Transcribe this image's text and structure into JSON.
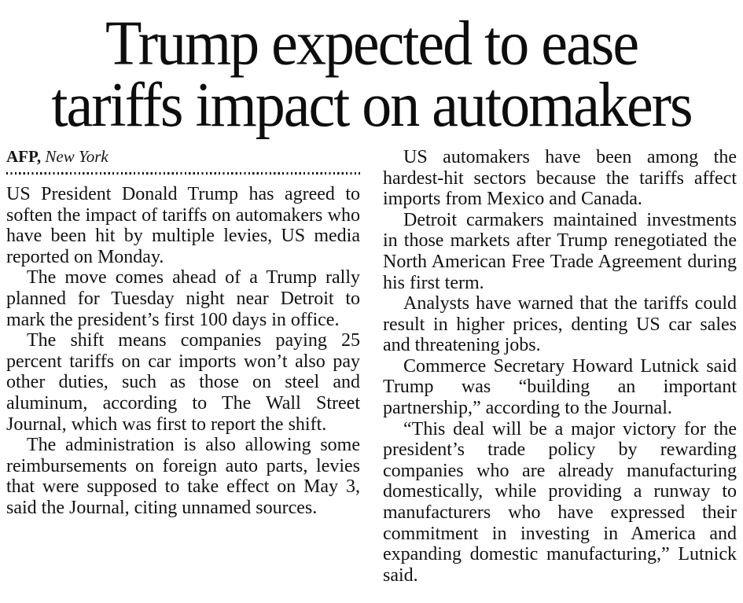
{
  "article": {
    "headline_lines": [
      "Trump expected to ease",
      "tariffs impact on automakers"
    ],
    "byline": {
      "agency": "AFP,",
      "location": "New York"
    },
    "columns": {
      "left": [
        "US President Donald Trump has agreed to soften the impact of tariffs on automakers who have been hit by multiple levies, US media reported on Monday.",
        "The move comes ahead of a Trump rally planned for Tuesday night near Detroit to mark the president’s first 100 days in office.",
        "The shift means companies paying 25 percent tariffs on car imports won’t also pay other duties, such as those on steel and aluminum, according to The Wall Street Journal, which was first to report the shift.",
        "The administration is also allowing some reimbursements on foreign auto parts, levies that were supposed to take effect on May 3, said the Journal, citing unnamed sources."
      ],
      "right": [
        "US automakers have been among the hardest-hit sectors because the tariffs affect imports from Mexico and Canada.",
        "Detroit carmakers maintained investments in those markets after Trump renegotiated the North American Free Trade Agreement during his first term.",
        "Analysts have warned that the tariffs could result in higher prices, denting US car sales and threatening jobs.",
        "Commerce Secretary Howard Lutnick said Trump was “building an important partnership,” according to the Journal.",
        "“This deal will be a major victory for the president’s trade policy by rewarding companies who are already manufacturing domestically, while providing a runway to manufacturers who have expressed their commitment in investing in America and expanding domestic manufacturing,” Lutnick said."
      ]
    },
    "colors": {
      "text": "#111111",
      "background": "#ffffff"
    }
  }
}
